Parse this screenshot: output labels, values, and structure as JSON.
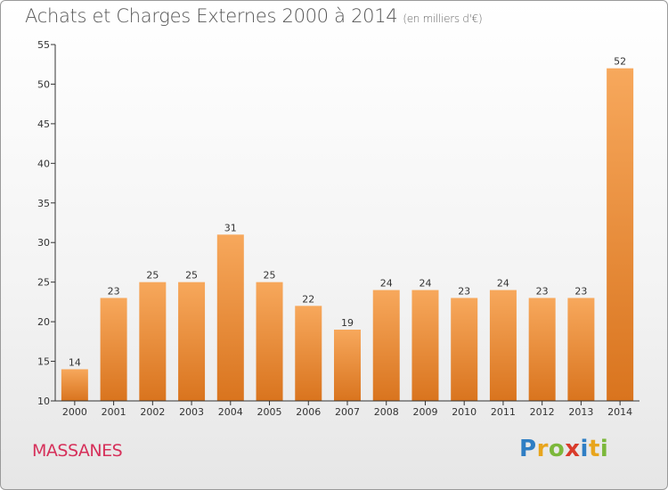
{
  "header": {
    "title": "Achats et Charges Externes 2000 à 2014",
    "unit": "(en milliers d'€)"
  },
  "commune": {
    "name": "MASSANES"
  },
  "logo": {
    "letters": [
      {
        "char": "P",
        "color": "#2f7ec4"
      },
      {
        "char": "r",
        "color": "#e8a51d"
      },
      {
        "char": "o",
        "color": "#7cb83b"
      },
      {
        "char": "x",
        "color": "#d93b2b"
      },
      {
        "char": "i",
        "color": "#2f7ec4"
      },
      {
        "char": "t",
        "color": "#e8a51d"
      },
      {
        "char": "i",
        "color": "#7cb83b"
      }
    ]
  },
  "colors": {
    "bar_top": "#f7a85c",
    "bar_bottom": "#d9741e",
    "axis": "#333333",
    "grid": "#cfcfcf"
  },
  "chart_data": {
    "type": "bar",
    "title": "Achats et Charges Externes 2000 à 2014",
    "subtitle": "(en milliers d'€)",
    "categories": [
      "2000",
      "2001",
      "2002",
      "2003",
      "2004",
      "2005",
      "2006",
      "2007",
      "2008",
      "2009",
      "2010",
      "2011",
      "2012",
      "2013",
      "2014"
    ],
    "values": [
      14,
      23,
      25,
      25,
      31,
      25,
      22,
      19,
      24,
      24,
      23,
      24,
      23,
      23,
      52
    ],
    "ylim": [
      10,
      55
    ],
    "yticks": [
      10,
      15,
      20,
      25,
      30,
      35,
      40,
      45,
      50,
      55
    ],
    "grid": true,
    "xlabel": "",
    "ylabel": ""
  }
}
